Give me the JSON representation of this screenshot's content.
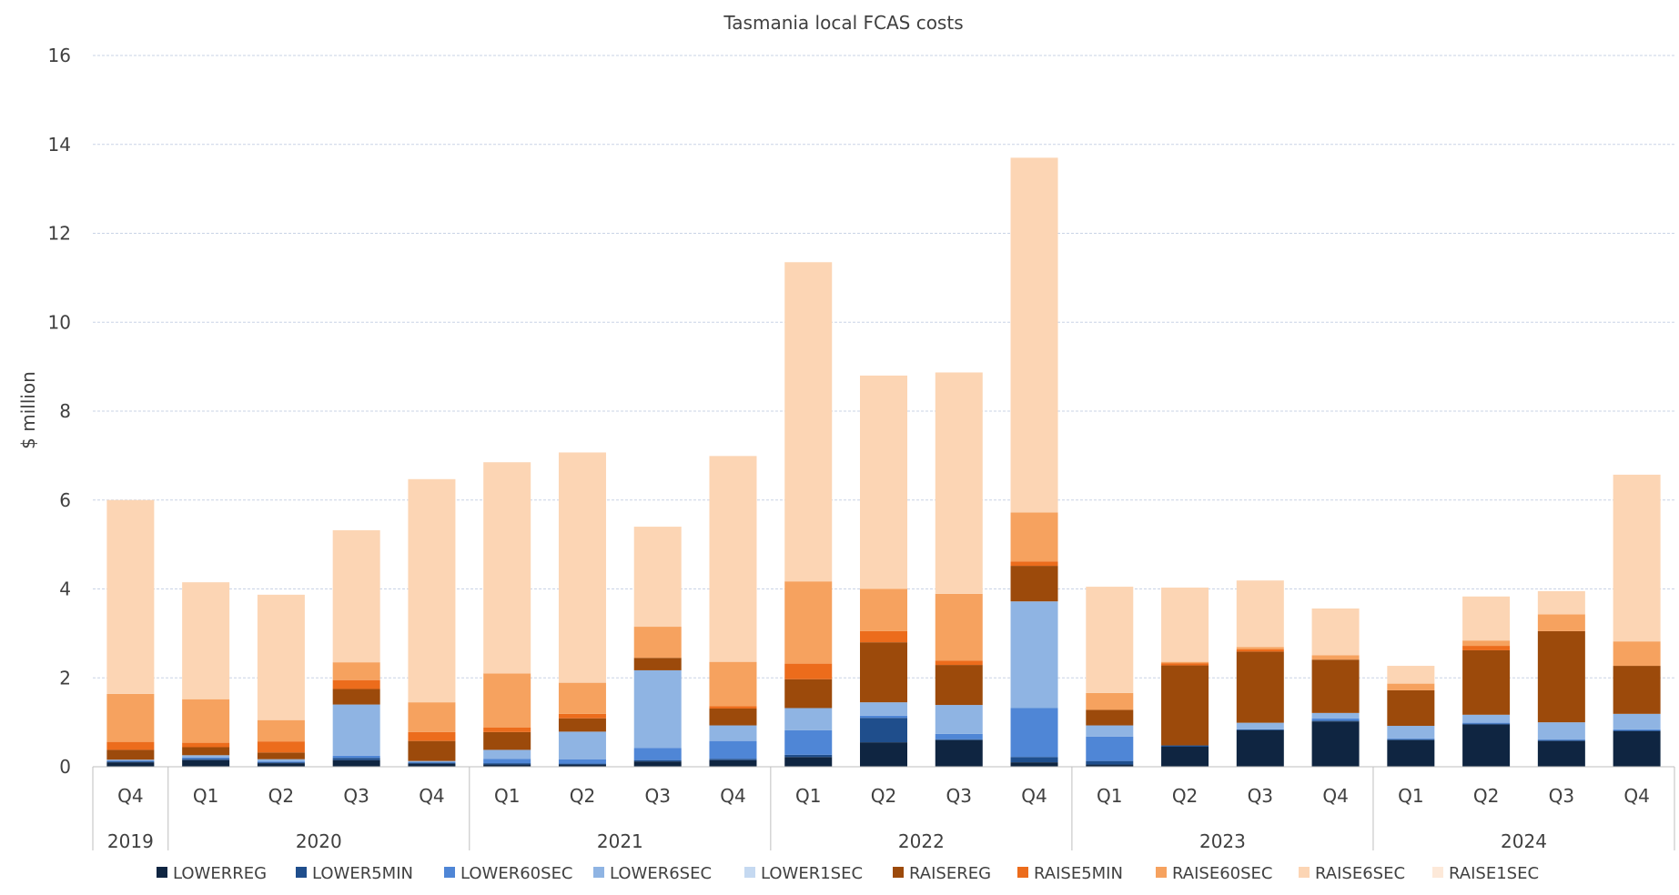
{
  "chart_data": {
    "type": "bar",
    "stacked": true,
    "title": "Tasmania local FCAS costs",
    "ylabel": "$ million",
    "xlabel": "",
    "ylim": [
      0,
      16
    ],
    "yticks": [
      0,
      2,
      4,
      6,
      8,
      10,
      12,
      14,
      16
    ],
    "grid": true,
    "legend_position": "bottom",
    "categories": [
      "Q4",
      "Q1",
      "Q2",
      "Q3",
      "Q4",
      "Q1",
      "Q2",
      "Q3",
      "Q4",
      "Q1",
      "Q2",
      "Q3",
      "Q4",
      "Q1",
      "Q2",
      "Q3",
      "Q4",
      "Q1",
      "Q2",
      "Q3",
      "Q4"
    ],
    "year_groups": [
      {
        "label": "2019",
        "count": 1
      },
      {
        "label": "2020",
        "count": 4
      },
      {
        "label": "2021",
        "count": 4
      },
      {
        "label": "2022",
        "count": 4
      },
      {
        "label": "2023",
        "count": 4
      },
      {
        "label": "2024",
        "count": 4
      }
    ],
    "series": [
      {
        "name": "LOWERREG",
        "color": "#0f2541",
        "values": [
          0.1,
          0.15,
          0.08,
          0.15,
          0.07,
          0.05,
          0.05,
          0.12,
          0.15,
          0.22,
          0.55,
          0.6,
          0.1,
          0.05,
          0.45,
          0.82,
          1.02,
          0.6,
          0.95,
          0.58,
          0.8
        ]
      },
      {
        "name": "LOWER5MIN",
        "color": "#1f4e8c",
        "values": [
          0.02,
          0.03,
          0.02,
          0.05,
          0.02,
          0.03,
          0.02,
          0.03,
          0.03,
          0.05,
          0.55,
          0.02,
          0.12,
          0.08,
          0.03,
          0.02,
          0.02,
          0.02,
          0.02,
          0.02,
          0.02
        ]
      },
      {
        "name": "LOWER60SEC",
        "color": "#4f86d6",
        "values": [
          0.02,
          0.03,
          0.02,
          0.05,
          0.02,
          0.1,
          0.1,
          0.27,
          0.4,
          0.55,
          0.05,
          0.12,
          1.1,
          0.55,
          0.0,
          0.0,
          0.05,
          0.02,
          0.02,
          0.02,
          0.02
        ]
      },
      {
        "name": "LOWER6SEC",
        "color": "#8fb4e3",
        "values": [
          0.02,
          0.05,
          0.05,
          1.15,
          0.02,
          0.2,
          0.62,
          1.75,
          0.35,
          0.5,
          0.3,
          0.65,
          2.4,
          0.25,
          0.0,
          0.15,
          0.12,
          0.28,
          0.18,
          0.38,
          0.35
        ]
      },
      {
        "name": "LOWER1SEC",
        "color": "#c5d9f1",
        "values": [
          0.0,
          0.0,
          0.0,
          0.0,
          0.0,
          0.0,
          0.0,
          0.0,
          0.0,
          0.0,
          0.0,
          0.0,
          0.0,
          0.0,
          0.0,
          0.0,
          0.0,
          0.0,
          0.0,
          0.0,
          0.0
        ]
      },
      {
        "name": "RAISEREG",
        "color": "#9c4a0b",
        "values": [
          0.22,
          0.18,
          0.15,
          0.35,
          0.45,
          0.4,
          0.3,
          0.28,
          0.38,
          0.65,
          1.35,
          0.9,
          0.8,
          0.35,
          1.8,
          1.6,
          1.2,
          0.8,
          1.45,
          2.05,
          1.08
        ]
      },
      {
        "name": "RAISE5MIN",
        "color": "#ec6c1c",
        "values": [
          0.18,
          0.1,
          0.25,
          0.2,
          0.2,
          0.1,
          0.1,
          0.0,
          0.05,
          0.35,
          0.25,
          0.1,
          0.1,
          0.0,
          0.05,
          0.05,
          0.0,
          0.0,
          0.1,
          0.0,
          0.0
        ]
      },
      {
        "name": "RAISE60SEC",
        "color": "#f6a25f",
        "values": [
          1.08,
          0.98,
          0.48,
          0.4,
          0.67,
          1.22,
          0.7,
          0.7,
          1.0,
          1.85,
          0.95,
          1.5,
          1.1,
          0.38,
          0.03,
          0.05,
          0.1,
          0.15,
          0.12,
          0.38,
          0.55
        ]
      },
      {
        "name": "RAISE6SEC",
        "color": "#fcd5b4",
        "values": [
          4.36,
          2.63,
          2.82,
          2.97,
          5.02,
          4.75,
          5.18,
          2.25,
          4.63,
          7.18,
          4.8,
          4.98,
          7.98,
          2.39,
          1.67,
          1.5,
          1.05,
          0.4,
          0.99,
          0.52,
          3.75
        ]
      },
      {
        "name": "RAISE1SEC",
        "color": "#fde9d9",
        "values": [
          0.0,
          0.0,
          0.0,
          0.0,
          0.0,
          0.0,
          0.0,
          0.0,
          0.0,
          0.0,
          0.0,
          0.0,
          0.0,
          0.0,
          0.0,
          0.0,
          0.0,
          0.0,
          0.0,
          0.0,
          0.0
        ]
      }
    ]
  }
}
